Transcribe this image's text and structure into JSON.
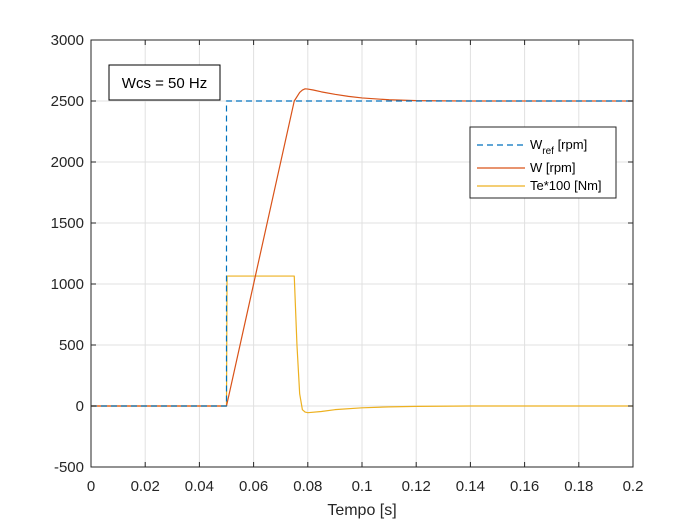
{
  "chart_data": {
    "type": "line",
    "title": "",
    "xlabel": "Tempo [s]",
    "ylabel": "",
    "xlim": [
      0,
      0.2
    ],
    "ylim": [
      -500,
      3000
    ],
    "xticks": [
      0,
      0.02,
      0.04,
      0.06,
      0.08,
      0.1,
      0.12,
      0.14,
      0.16,
      0.18,
      0.2
    ],
    "xtick_labels": [
      "0",
      "0.02",
      "0.04",
      "0.06",
      "0.08",
      "0.1",
      "0.12",
      "0.14",
      "0.16",
      "0.18",
      "0.2"
    ],
    "yticks": [
      -500,
      0,
      500,
      1000,
      1500,
      2000,
      2500,
      3000
    ],
    "ytick_labels": [
      "-500",
      "0",
      "500",
      "1000",
      "1500",
      "2000",
      "2500",
      "3000"
    ],
    "grid": true,
    "legend_position": "top-right",
    "annotation": "Wcs = 50 Hz",
    "series": [
      {
        "name": "W",
        "name_sub": "ref",
        "name_suffix": " [rpm]",
        "color": "#0072BD",
        "style": "dashed",
        "x": [
          0,
          0.05,
          0.05,
          0.2
        ],
        "y": [
          0,
          0,
          2500,
          2500
        ]
      },
      {
        "name": "W [rpm]",
        "color": "#D95319",
        "style": "solid",
        "x": [
          0,
          0.05,
          0.075,
          0.077,
          0.078,
          0.079,
          0.08,
          0.082,
          0.085,
          0.09,
          0.095,
          0.1,
          0.11,
          0.12,
          0.13,
          0.14,
          0.16,
          0.2
        ],
        "y": [
          0,
          0,
          2500,
          2570,
          2590,
          2600,
          2598,
          2590,
          2575,
          2555,
          2538,
          2525,
          2510,
          2503,
          2501,
          2500,
          2500,
          2500
        ]
      },
      {
        "name": "Te*100 [Nm]",
        "color": "#EDB120",
        "style": "solid",
        "x": [
          0,
          0.05,
          0.0502,
          0.075,
          0.076,
          0.077,
          0.078,
          0.079,
          0.08,
          0.085,
          0.09,
          0.1,
          0.11,
          0.12,
          0.14,
          0.16,
          0.2
        ],
        "y": [
          0,
          0,
          1065,
          1065,
          500,
          100,
          -30,
          -50,
          -55,
          -45,
          -30,
          -15,
          -7,
          -3,
          0,
          0,
          0
        ]
      }
    ]
  }
}
